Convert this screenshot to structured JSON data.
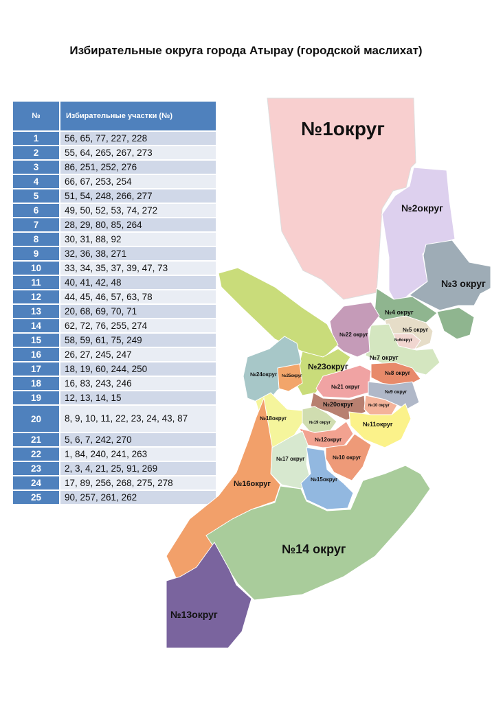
{
  "title": "Избирательные округа города Атырау (городской маслихат)",
  "table": {
    "header_num": "№",
    "header_sites": "Избирательные участки (№)",
    "rows": [
      {
        "num": "1",
        "sites": "56, 65, 77, 227, 228"
      },
      {
        "num": "2",
        "sites": "55, 64, 265, 267, 273"
      },
      {
        "num": "3",
        "sites": "86, 251, 252, 276"
      },
      {
        "num": "4",
        "sites": "66, 67, 253, 254"
      },
      {
        "num": "5",
        "sites": "51, 54, 248, 266, 277"
      },
      {
        "num": "6",
        "sites": "49, 50, 52, 53, 74, 272"
      },
      {
        "num": "7",
        "sites": "28, 29, 80, 85, 264"
      },
      {
        "num": "8",
        "sites": "30, 31, 88, 92"
      },
      {
        "num": "9",
        "sites": "32, 36, 38, 271"
      },
      {
        "num": "10",
        "sites": "33, 34, 35, 37, 39, 47, 73"
      },
      {
        "num": "11",
        "sites": "40, 41, 42, 48"
      },
      {
        "num": "12",
        "sites": "44, 45, 46, 57, 63, 78"
      },
      {
        "num": "13",
        "sites": "20, 68, 69, 70, 71"
      },
      {
        "num": "14",
        "sites": "62, 72, 76, 255, 274"
      },
      {
        "num": "15",
        "sites": "58, 59, 61, 75, 249"
      },
      {
        "num": "16",
        "sites": "26, 27, 245, 247"
      },
      {
        "num": "17",
        "sites": "18, 19, 60, 244, 250"
      },
      {
        "num": "18",
        "sites": "16, 83, 243, 246"
      },
      {
        "num": "19",
        "sites": "12, 13, 14, 15"
      },
      {
        "num": "20",
        "sites": "8, 9, 10, 11, 22, 23, 24, 43, 87"
      },
      {
        "num": "21",
        "sites": "5, 6, 7, 242, 270"
      },
      {
        "num": "22",
        "sites": "1, 84, 240, 241, 263"
      },
      {
        "num": "23",
        "sites": "2, 3, 4, 21, 25, 91, 269"
      },
      {
        "num": "24",
        "sites": "17, 89, 256, 268, 275, 278"
      },
      {
        "num": "25",
        "sites": "90, 257, 261, 262"
      }
    ]
  },
  "map_labels": {
    "d1": "№1округ",
    "d2": "№2округ",
    "d3": "№3 округ",
    "d4": "№4 округ",
    "d5": "№5 округ",
    "d6": "№6округ",
    "d7": "№7 округ",
    "d8": "№8 округ",
    "d9": "№9 округ",
    "d10": "№10 округ",
    "d11": "№11округ",
    "d12": "№12округ",
    "d13": "№13округ",
    "d14": "№14 округ",
    "d15": "№15округ",
    "d16": "№16округ",
    "d17": "№17 округ",
    "d18": "№18округ",
    "d19": "№19 округ",
    "d20": "№20округ",
    "d21": "№21 округ",
    "d22": "№22 округ",
    "d23": "№23округ",
    "d24": "№24округ",
    "d25": "№25округ",
    "d26": "№10 округ"
  },
  "colors": {
    "header_blue": "#4f81bd",
    "row_odd": "#d0d8e8",
    "row_even": "#e9edf4"
  }
}
